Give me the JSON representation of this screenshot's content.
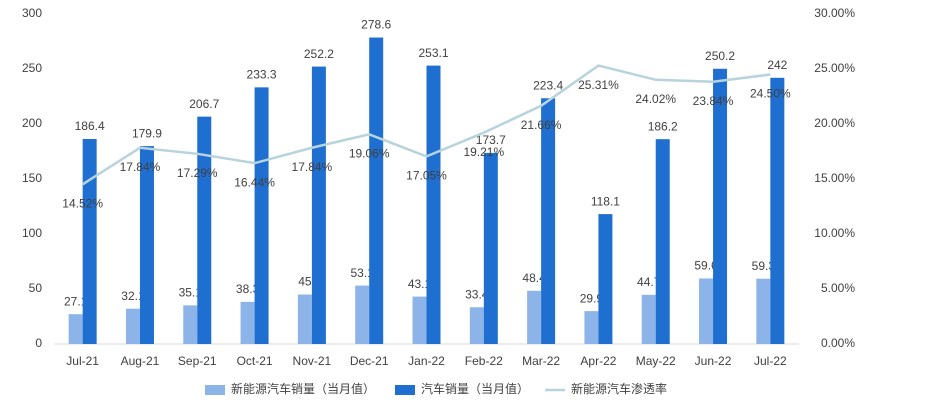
{
  "chart_data": {
    "type": "bar",
    "categories": [
      "Jul-21",
      "Aug-21",
      "Sep-21",
      "Oct-21",
      "Nov-21",
      "Dec-21",
      "Jan-22",
      "Feb-22",
      "Mar-22",
      "Apr-22",
      "May-22",
      "Jun-22",
      "Jul-22"
    ],
    "series": [
      {
        "name": "新能源汽车销量（当月值）",
        "color": "#8db4e8",
        "type": "bar",
        "values": [
          27.1,
          32.1,
          35.1,
          38.3,
          45,
          53.1,
          43.1,
          33.4,
          48.4,
          29.9,
          44.7,
          59.6,
          59.3
        ]
      },
      {
        "name": "汽车销量（当月值）",
        "color": "#1f6fd1",
        "type": "bar",
        "values": [
          186.4,
          179.9,
          206.7,
          233.3,
          252.2,
          278.6,
          253.1,
          173.7,
          223.4,
          118.1,
          186.2,
          250.2,
          242
        ]
      },
      {
        "name": "新能源汽车渗透率",
        "color": "#b7d3de",
        "type": "line",
        "axis": "y2",
        "values": [
          14.52,
          17.84,
          17.29,
          16.44,
          17.84,
          19.06,
          17.05,
          19.21,
          21.66,
          25.31,
          24.02,
          23.84,
          24.5
        ],
        "value_labels": [
          "14.52%",
          "17.84%",
          "17.29%",
          "16.44%",
          "17.84%",
          "19.06%",
          "17.05%",
          "19.21%",
          "21.66%",
          "25.31%",
          "24.02%",
          "23.84%",
          "24.50%"
        ]
      }
    ],
    "ylim": [
      0,
      300
    ],
    "yticks": [
      0,
      50,
      100,
      150,
      200,
      250,
      300
    ],
    "y2lim": [
      0,
      30
    ],
    "y2ticks": [
      {
        "value": 0,
        "label": "0.00%"
      },
      {
        "value": 5,
        "label": "5.00%"
      },
      {
        "value": 10,
        "label": "10.00%"
      },
      {
        "value": 15,
        "label": "15.00%"
      },
      {
        "value": 20,
        "label": "20.00%"
      },
      {
        "value": 25,
        "label": "25.00%"
      },
      {
        "value": 30,
        "label": "30.00%"
      }
    ],
    "grid": false,
    "legend": "bottom"
  }
}
